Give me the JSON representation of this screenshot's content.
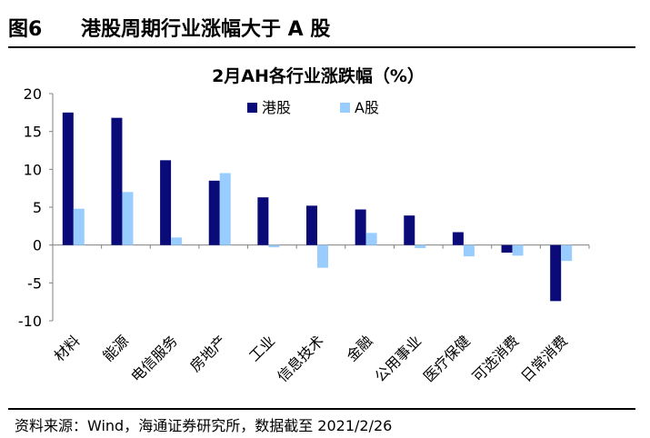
{
  "figure": {
    "number": "图6",
    "title": "港股周期行业涨幅大于 A 股",
    "source": "资料来源：Wind，海通证券研究所，数据截至 2021/2/26"
  },
  "chart_data": {
    "type": "bar",
    "title": "2月AH各行业涨跌幅（%）",
    "categories": [
      "材料",
      "能源",
      "电信服务",
      "房地产",
      "工业",
      "信息技术",
      "金融",
      "公用事业",
      "医疗保健",
      "可选消费",
      "日常消费"
    ],
    "series": [
      {
        "name": "港股",
        "color": "#0a0a78",
        "values": [
          17.5,
          16.8,
          11.2,
          8.5,
          6.3,
          5.2,
          4.7,
          3.9,
          1.7,
          -1.0,
          -7.4
        ]
      },
      {
        "name": "A股",
        "color": "#99ccff",
        "values": [
          4.8,
          7.0,
          1.0,
          9.5,
          -0.3,
          -3.0,
          1.6,
          -0.4,
          -1.5,
          -1.4,
          -2.1
        ]
      }
    ],
    "yticks": [
      20,
      15,
      10,
      5,
      0,
      -5,
      -10
    ],
    "ylim": [
      -10,
      20
    ],
    "grid": false,
    "legend_position": "top-right"
  }
}
